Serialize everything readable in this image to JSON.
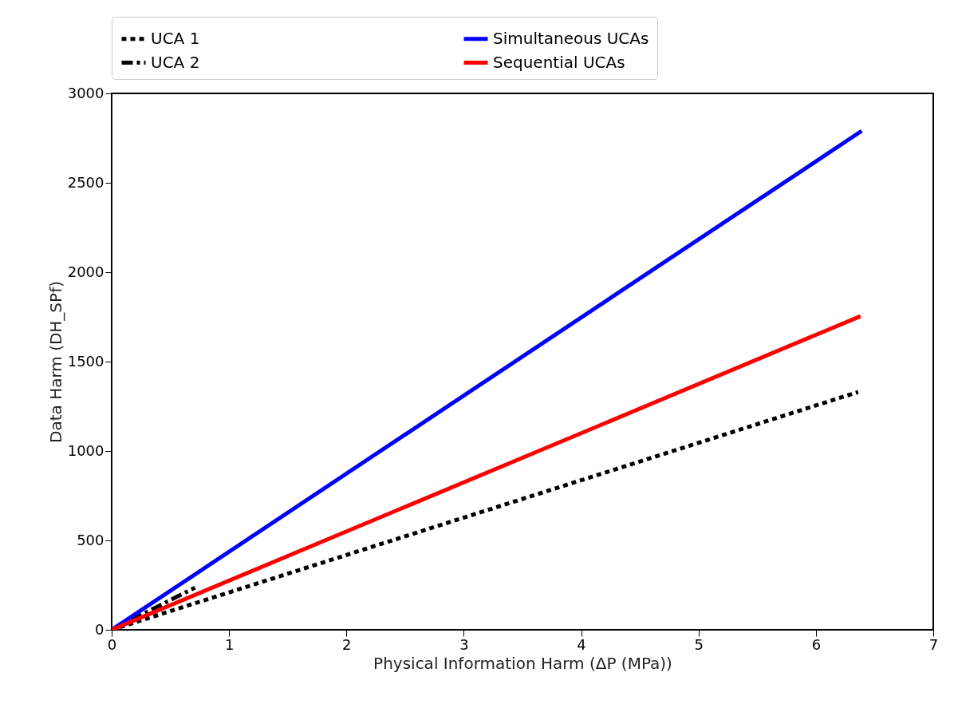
{
  "chart_data": {
    "type": "line",
    "xlabel": "Physical Information Harm (ΔP (MPa))",
    "ylabel": "Data Harm (DH_SPf)",
    "xlim": [
      0,
      7
    ],
    "xticks": [
      0,
      1,
      2,
      3,
      4,
      5,
      6,
      7
    ],
    "ylim": [
      0,
      3000
    ],
    "yticks": [
      0,
      500,
      1000,
      1500,
      2000,
      2500,
      3000
    ],
    "grid": false,
    "legend": "top",
    "series": [
      {
        "name": "UCA 1",
        "color": "#000000",
        "line_style": "dotted",
        "x": [
          0,
          6.36
        ],
        "values": [
          0,
          1330
        ]
      },
      {
        "name": "UCA 2",
        "color": "#000000",
        "line_style": "dashdot",
        "x": [
          0,
          0.71
        ],
        "values": [
          0,
          236
        ]
      },
      {
        "name": "Simultaneous UCAs",
        "color": "#0000ff",
        "line_style": "solid",
        "x": [
          0,
          6.39
        ],
        "values": [
          0,
          2790
        ]
      },
      {
        "name": "Sequential UCAs",
        "color": "#ff0000",
        "line_style": "solid",
        "x": [
          0,
          6.38
        ],
        "values": [
          0,
          1754
        ]
      }
    ]
  }
}
